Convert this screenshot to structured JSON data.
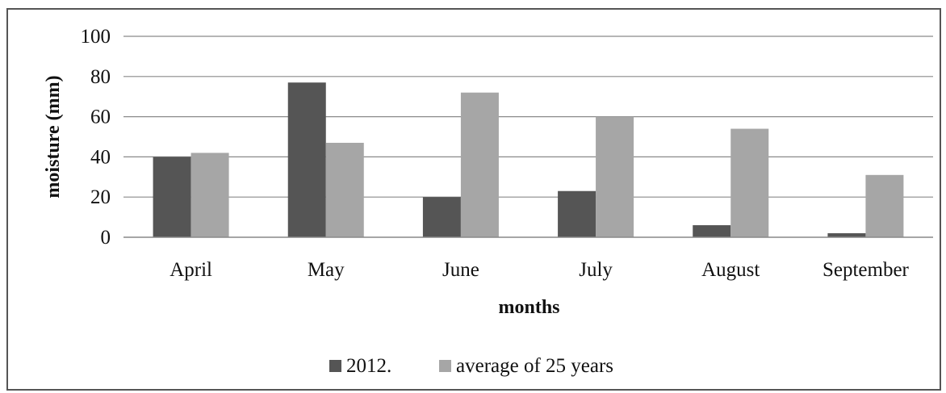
{
  "chart_data": {
    "type": "bar",
    "title": "",
    "xlabel": "months",
    "ylabel": "moisture (mm)",
    "categories": [
      "April",
      "May",
      "June",
      "July",
      "August",
      "September"
    ],
    "series": [
      {
        "name": "2012.",
        "values": [
          40,
          77,
          20,
          23,
          6,
          2
        ],
        "color": "#555555"
      },
      {
        "name": "average of 25 years",
        "values": [
          42,
          47,
          72,
          60,
          54,
          31
        ],
        "color": "#a6a6a6"
      }
    ],
    "ylim": [
      0,
      100
    ],
    "yticks": [
      0,
      20,
      40,
      60,
      80,
      100
    ],
    "grid": true,
    "legend_position": "bottom"
  }
}
